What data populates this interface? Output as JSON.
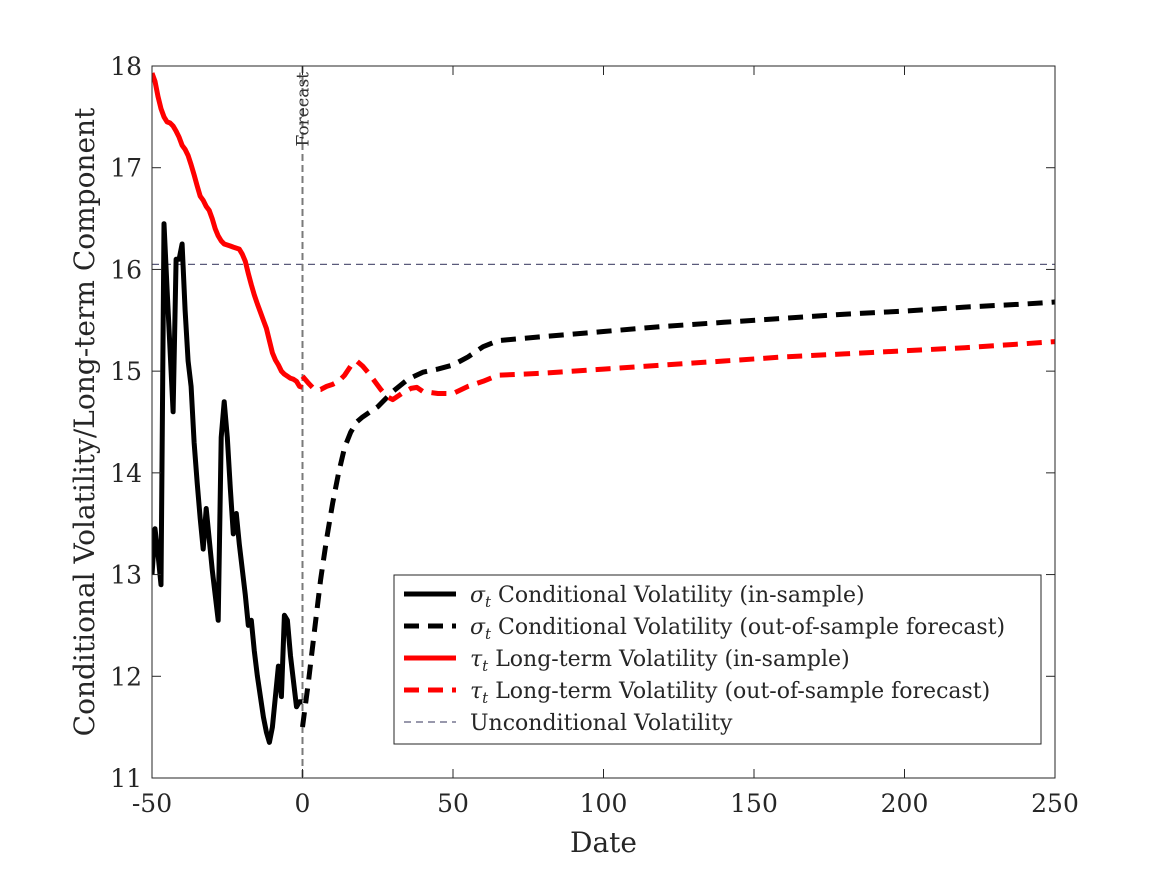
{
  "chart_data": {
    "type": "line",
    "xlabel": "Date",
    "ylabel": "Conditional Volatility/Long-term Component",
    "xlim": [
      -50,
      250
    ],
    "ylim": [
      11,
      18
    ],
    "xticks": [
      "-50",
      "0",
      "50",
      "100",
      "150",
      "200",
      "250"
    ],
    "yticks": [
      "11",
      "12",
      "13",
      "14",
      "15",
      "16",
      "17",
      "18"
    ],
    "grid": false,
    "legend_position": "bottom-right",
    "annotations": [
      {
        "text": "Forecast",
        "x": 0
      }
    ],
    "series": [
      {
        "name_symbol": "σ",
        "name_sub": "t",
        "name": "Conditional Volatility (in-sample)",
        "style": "solid",
        "color": "#000000",
        "x": [
          -50,
          -49,
          -48,
          -47,
          -46,
          -45,
          -44,
          -43,
          -42,
          -41,
          -40,
          -39,
          -38,
          -37,
          -36,
          -35,
          -34,
          -33,
          -32,
          -31,
          -30,
          -29,
          -28,
          -27,
          -26,
          -25,
          -24,
          -23,
          -22,
          -21,
          -20,
          -19,
          -18,
          -17,
          -16,
          -15,
          -14,
          -13,
          -12,
          -11,
          -10,
          -9,
          -8,
          -7,
          -6,
          -5,
          -4,
          -3,
          -2,
          -1,
          0
        ],
        "y": [
          13.0,
          13.45,
          13.2,
          12.9,
          16.45,
          15.8,
          15.2,
          14.6,
          16.1,
          16.1,
          16.25,
          15.6,
          15.1,
          14.85,
          14.3,
          13.9,
          13.55,
          13.25,
          13.65,
          13.35,
          13.05,
          12.8,
          12.55,
          14.35,
          14.7,
          14.35,
          13.85,
          13.4,
          13.6,
          13.3,
          13.05,
          12.8,
          12.5,
          12.55,
          12.25,
          12.0,
          11.8,
          11.6,
          11.45,
          11.35,
          11.5,
          11.8,
          12.1,
          11.8,
          12.6,
          12.55,
          12.2,
          11.95,
          11.7,
          11.75,
          11.75
        ]
      },
      {
        "name_symbol": "σ",
        "name_sub": "t",
        "name": "Conditional Volatility (out-of-sample forecast)",
        "style": "dashed",
        "color": "#000000",
        "x": [
          0,
          2,
          4,
          6,
          8,
          10,
          12,
          14,
          16,
          18,
          20,
          25,
          30,
          35,
          40,
          45,
          50,
          55,
          60,
          65,
          80,
          100,
          120,
          140,
          160,
          180,
          200,
          220,
          240,
          250
        ],
        "y": [
          11.5,
          11.95,
          12.45,
          12.95,
          13.35,
          13.7,
          14.0,
          14.25,
          14.4,
          14.5,
          14.55,
          14.65,
          14.8,
          14.92,
          14.99,
          15.02,
          15.06,
          15.14,
          15.24,
          15.3,
          15.34,
          15.39,
          15.44,
          15.48,
          15.52,
          15.56,
          15.59,
          15.63,
          15.66,
          15.68
        ]
      },
      {
        "name_symbol": "τ",
        "name_sub": "t",
        "name": "Long-term Volatility (in-sample)",
        "style": "solid",
        "color": "#ff0000",
        "x": [
          -50,
          -49,
          -48,
          -47,
          -46,
          -45,
          -44,
          -43,
          -42,
          -41,
          -40,
          -39,
          -38,
          -37,
          -36,
          -35,
          -34,
          -33,
          -32,
          -31,
          -30,
          -29,
          -28,
          -27,
          -26,
          -25,
          -24,
          -23,
          -22,
          -21,
          -20,
          -19,
          -18,
          -17,
          -16,
          -15,
          -14,
          -13,
          -12,
          -11,
          -10,
          -9,
          -8,
          -7,
          -6,
          -5,
          -4,
          -3,
          -2,
          -1,
          0
        ],
        "y": [
          17.93,
          17.85,
          17.7,
          17.58,
          17.5,
          17.45,
          17.44,
          17.41,
          17.36,
          17.3,
          17.22,
          17.18,
          17.12,
          17.03,
          16.93,
          16.82,
          16.72,
          16.68,
          16.62,
          16.58,
          16.5,
          16.4,
          16.33,
          16.28,
          16.25,
          16.24,
          16.23,
          16.22,
          16.21,
          16.2,
          16.15,
          16.08,
          15.96,
          15.85,
          15.75,
          15.66,
          15.58,
          15.5,
          15.42,
          15.3,
          15.18,
          15.11,
          15.06,
          15.0,
          14.97,
          14.95,
          14.93,
          14.92,
          14.9,
          14.85,
          14.84
        ]
      },
      {
        "name_symbol": "τ",
        "name_sub": "t",
        "name": "Long-term Volatility (out-of-sample forecast)",
        "style": "dashed",
        "color": "#ff0000",
        "x": [
          0,
          2,
          4,
          6,
          8,
          10,
          12,
          14,
          16,
          18,
          20,
          22,
          24,
          26,
          28,
          30,
          33,
          36,
          38,
          40,
          45,
          50,
          55,
          60,
          65,
          80,
          100,
          120,
          140,
          160,
          180,
          200,
          220,
          240,
          250
        ],
        "y": [
          14.95,
          14.88,
          14.82,
          14.82,
          14.85,
          14.87,
          14.9,
          14.96,
          15.05,
          15.1,
          15.05,
          14.98,
          14.9,
          14.82,
          14.75,
          14.72,
          14.78,
          14.83,
          14.84,
          14.8,
          14.78,
          14.78,
          14.85,
          14.9,
          14.96,
          14.98,
          15.02,
          15.06,
          15.1,
          15.14,
          15.17,
          15.2,
          15.23,
          15.27,
          15.29
        ]
      }
    ],
    "reference_lines": [
      {
        "name": "Unconditional Volatility",
        "orientation": "horizontal",
        "y": 16.05,
        "style": "dashed",
        "color": "#5a5a7a"
      },
      {
        "name": "Forecast",
        "orientation": "vertical",
        "x": 0,
        "style": "dashed",
        "color": "#7a7a7a"
      }
    ]
  }
}
